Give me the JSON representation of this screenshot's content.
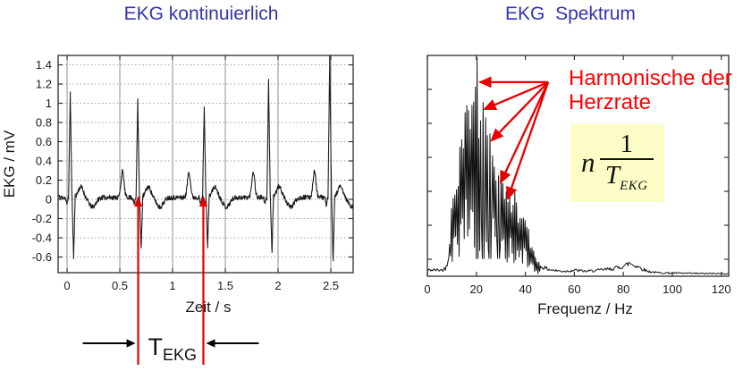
{
  "page": {
    "background": "#ffffff",
    "title_color": "#3434b0"
  },
  "chart_data": [
    {
      "type": "line",
      "panel": "left",
      "title": "EKG kontinuierlich",
      "xlabel": "Zeit / s",
      "ylabel": "EKG / mV",
      "xlim": [
        -0.085,
        2.712
      ],
      "ylim": [
        -0.763,
        1.498
      ],
      "xticks": [
        0,
        0.5,
        1,
        1.5,
        2,
        2.5
      ],
      "xtick_labels": [
        "0",
        "0.5",
        "1",
        "1.5",
        "2",
        "2.5"
      ],
      "yticks": [
        1.4,
        1.2,
        1,
        0.8,
        0.6,
        0.4,
        0.2,
        0,
        -0.2,
        -0.4,
        -0.6
      ],
      "ytick_labels": [
        "1.4",
        "1.2",
        "1",
        "0.8",
        "0.6",
        "0.4",
        "0.2",
        "0",
        "-0.2",
        "-0.4",
        "-0.6"
      ],
      "grid": {
        "vertical": "solid",
        "horizontal": "dotted"
      },
      "line_color": "#1c1c1c",
      "beats": {
        "r_times": [
          0.03,
          0.67,
          1.3,
          1.91,
          2.49
        ],
        "r_amplitudes": [
          1.08,
          1.02,
          0.96,
          1.22,
          1.47
        ],
        "s_depths": [
          -0.62,
          -0.55,
          -0.52,
          -0.6,
          -0.68
        ],
        "p_amplitude": 0.27,
        "baseline": 0.02
      },
      "annotations": {
        "period_marker": {
          "times": [
            0.674,
            1.292
          ],
          "color": "#e60000",
          "arrow_color": "#000000",
          "label_main": "T",
          "label_sub": "EKG"
        }
      }
    },
    {
      "type": "line",
      "panel": "right",
      "title": "EKG  Spektrum",
      "xlabel": "Frequenz / Hz",
      "ylabel": "",
      "xlim": [
        0,
        123
      ],
      "ylim": [
        0,
        1
      ],
      "xticks": [
        0,
        20,
        40,
        60,
        80,
        100,
        120
      ],
      "xtick_labels": [
        "0",
        "20",
        "40",
        "60",
        "80",
        "100",
        "120"
      ],
      "grid": {
        "vertical": "none",
        "horizontal": "none"
      },
      "line_color": "#141414",
      "envelope": [
        [
          0,
          0.035
        ],
        [
          6,
          0.035
        ],
        [
          7.5,
          0.045
        ],
        [
          8.5,
          0.1
        ],
        [
          9.5,
          0.25
        ],
        [
          10.2,
          0.5
        ],
        [
          11,
          0.42
        ],
        [
          12,
          0.5
        ],
        [
          13,
          0.62
        ],
        [
          14,
          0.8
        ],
        [
          15,
          0.74
        ],
        [
          16,
          0.9
        ],
        [
          17,
          0.97
        ],
        [
          18,
          0.87
        ],
        [
          19,
          0.8
        ],
        [
          20,
          0.92
        ],
        [
          21,
          0.85
        ],
        [
          22,
          0.88
        ],
        [
          23,
          0.78
        ],
        [
          24,
          0.72
        ],
        [
          25.6,
          0.65
        ],
        [
          27,
          0.62
        ],
        [
          28,
          0.54
        ],
        [
          29.1,
          0.46
        ],
        [
          30,
          0.5
        ],
        [
          31,
          0.4
        ],
        [
          32,
          0.44
        ],
        [
          33,
          0.36
        ],
        [
          34,
          0.42
        ],
        [
          35,
          0.34
        ],
        [
          36,
          0.4
        ],
        [
          37,
          0.31
        ],
        [
          38,
          0.36
        ],
        [
          39,
          0.29
        ],
        [
          40,
          0.32
        ],
        [
          41,
          0.24
        ],
        [
          42,
          0.18
        ],
        [
          43,
          0.13
        ],
        [
          44,
          0.1
        ],
        [
          45,
          0.08
        ],
        [
          46,
          0.06
        ],
        [
          48,
          0.045
        ],
        [
          52,
          0.032
        ],
        [
          56,
          0.028
        ],
        [
          60,
          0.034
        ],
        [
          65,
          0.028
        ],
        [
          70,
          0.034
        ],
        [
          75,
          0.042
        ],
        [
          78,
          0.05
        ],
        [
          81,
          0.062
        ],
        [
          82.5,
          0.075
        ],
        [
          84,
          0.065
        ],
        [
          86,
          0.055
        ],
        [
          88,
          0.04
        ],
        [
          90,
          0.028
        ],
        [
          94,
          0.02
        ],
        [
          100,
          0.018
        ],
        [
          108,
          0.016
        ],
        [
          116,
          0.015
        ],
        [
          123,
          0.015
        ]
      ],
      "fundamental_line": {
        "f": 20.2,
        "top": 0.99
      },
      "harmonic_arrows": {
        "origin": [
          49.3,
          0.879
        ],
        "heads": [
          [
            20.8,
            0.879
          ],
          [
            22.6,
            0.757
          ],
          [
            25.5,
            0.615
          ],
          [
            29.2,
            0.425
          ],
          [
            32.1,
            0.352
          ]
        ],
        "color": "#e60000"
      },
      "label": {
        "lines": [
          "Harmonische der",
          "Herzrate"
        ],
        "color": "#ff0000"
      },
      "formula": {
        "prefix": "n",
        "numerator": "1",
        "denominator_base": "T",
        "denominator_sub": "EKG",
        "background": "#fcfcc6"
      }
    }
  ]
}
